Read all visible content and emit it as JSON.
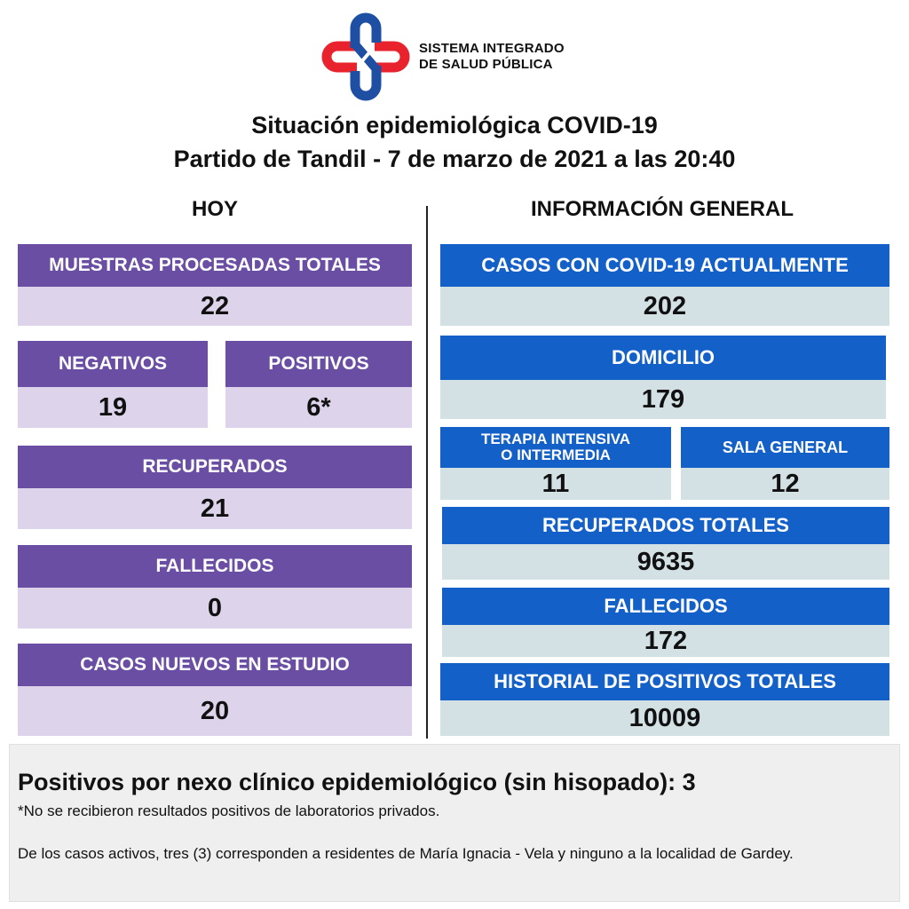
{
  "header": {
    "org_line1": "SISTEMA INTEGRADO",
    "org_line2": "DE SALUD PÚBLICA",
    "title_line1": "Situación epidemiológica COVID-19",
    "title_line2": "Partido de Tandil - 7 de marzo de 2021 a las 20:40",
    "logo_colors": {
      "red": "#e8232d",
      "blue": "#1f4fa3"
    }
  },
  "today": {
    "heading": "HOY",
    "muestras": {
      "label": "MUESTRAS PROCESADAS TOTALES",
      "value": "22"
    },
    "negativos": {
      "label": "NEGATIVOS",
      "value": "19"
    },
    "positivos": {
      "label": "POSITIVOS",
      "value": "6*"
    },
    "recuperados": {
      "label": "RECUPERADOS",
      "value": "21"
    },
    "fallecidos": {
      "label": "FALLECIDOS",
      "value": "0"
    },
    "casos_nuevos": {
      "label": "CASOS NUEVOS EN ESTUDIO",
      "value": "20"
    }
  },
  "general": {
    "heading": "INFORMACIÓN GENERAL",
    "casos_actuales": {
      "label": "CASOS CON COVID-19 ACTUALMENTE",
      "value": "202"
    },
    "domicilio": {
      "label": "DOMICILIO",
      "value": "179"
    },
    "terapia": {
      "label_line1": "TERAPIA INTENSIVA",
      "label_line2": "O INTERMEDIA",
      "value": "11"
    },
    "sala": {
      "label": "SALA GENERAL",
      "value": "12"
    },
    "recuperados_totales": {
      "label": "RECUPERADOS TOTALES",
      "value": "9635"
    },
    "fallecidos": {
      "label": "FALLECIDOS",
      "value": "172"
    },
    "historial": {
      "label": "HISTORIAL DE POSITIVOS TOTALES",
      "value": "10009"
    }
  },
  "footer": {
    "main": "Positivos por nexo clínico epidemiológico (sin hisopado): 3",
    "note": "*No se recibieron resultados positivos de laboratorios privados.",
    "paragraph": "De los casos activos, tres (3) corresponden a residentes de María Ignacia - Vela y ninguno a la localidad de Gardey."
  },
  "colors": {
    "purple_head": "#6a4ea3",
    "purple_value": "#ddd3ea",
    "blue_head": "#1460c9",
    "blue_value": "#d3e1e5",
    "footer_bg": "#efefef"
  }
}
